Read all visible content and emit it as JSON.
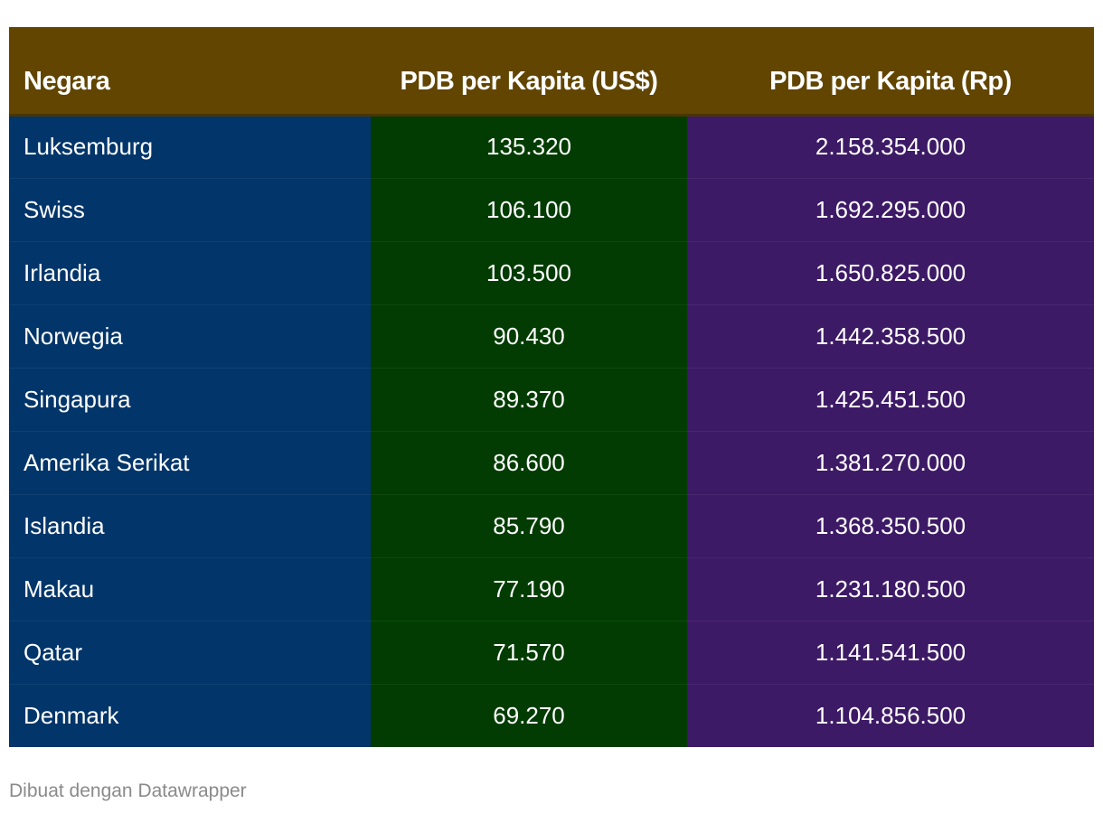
{
  "chart_data": {
    "type": "table",
    "columns": [
      "Negara",
      "PDB per Kapita (US$)",
      "PDB per Kapita (Rp)"
    ],
    "rows": [
      [
        "Luksemburg",
        "135.320",
        "2.158.354.000"
      ],
      [
        "Swiss",
        "106.100",
        "1.692.295.000"
      ],
      [
        "Irlandia",
        "103.500",
        "1.650.825.000"
      ],
      [
        "Norwegia",
        "90.430",
        "1.442.358.500"
      ],
      [
        "Singapura",
        "89.370",
        "1.425.451.500"
      ],
      [
        "Amerika Serikat",
        "86.600",
        "1.381.270.000"
      ],
      [
        "Islandia",
        "85.790",
        "1.368.350.500"
      ],
      [
        "Makau",
        "77.190",
        "1.231.180.500"
      ],
      [
        "Qatar",
        "71.570",
        "1.141.541.500"
      ],
      [
        "Denmark",
        "69.270",
        "1.104.856.500"
      ]
    ]
  },
  "colors": {
    "header_background": "#614500",
    "country_column": "#02356a",
    "usd_column": "#023c02",
    "rp_column": "#3d1a66"
  },
  "footer": {
    "credit": "Dibuat dengan Datawrapper"
  }
}
